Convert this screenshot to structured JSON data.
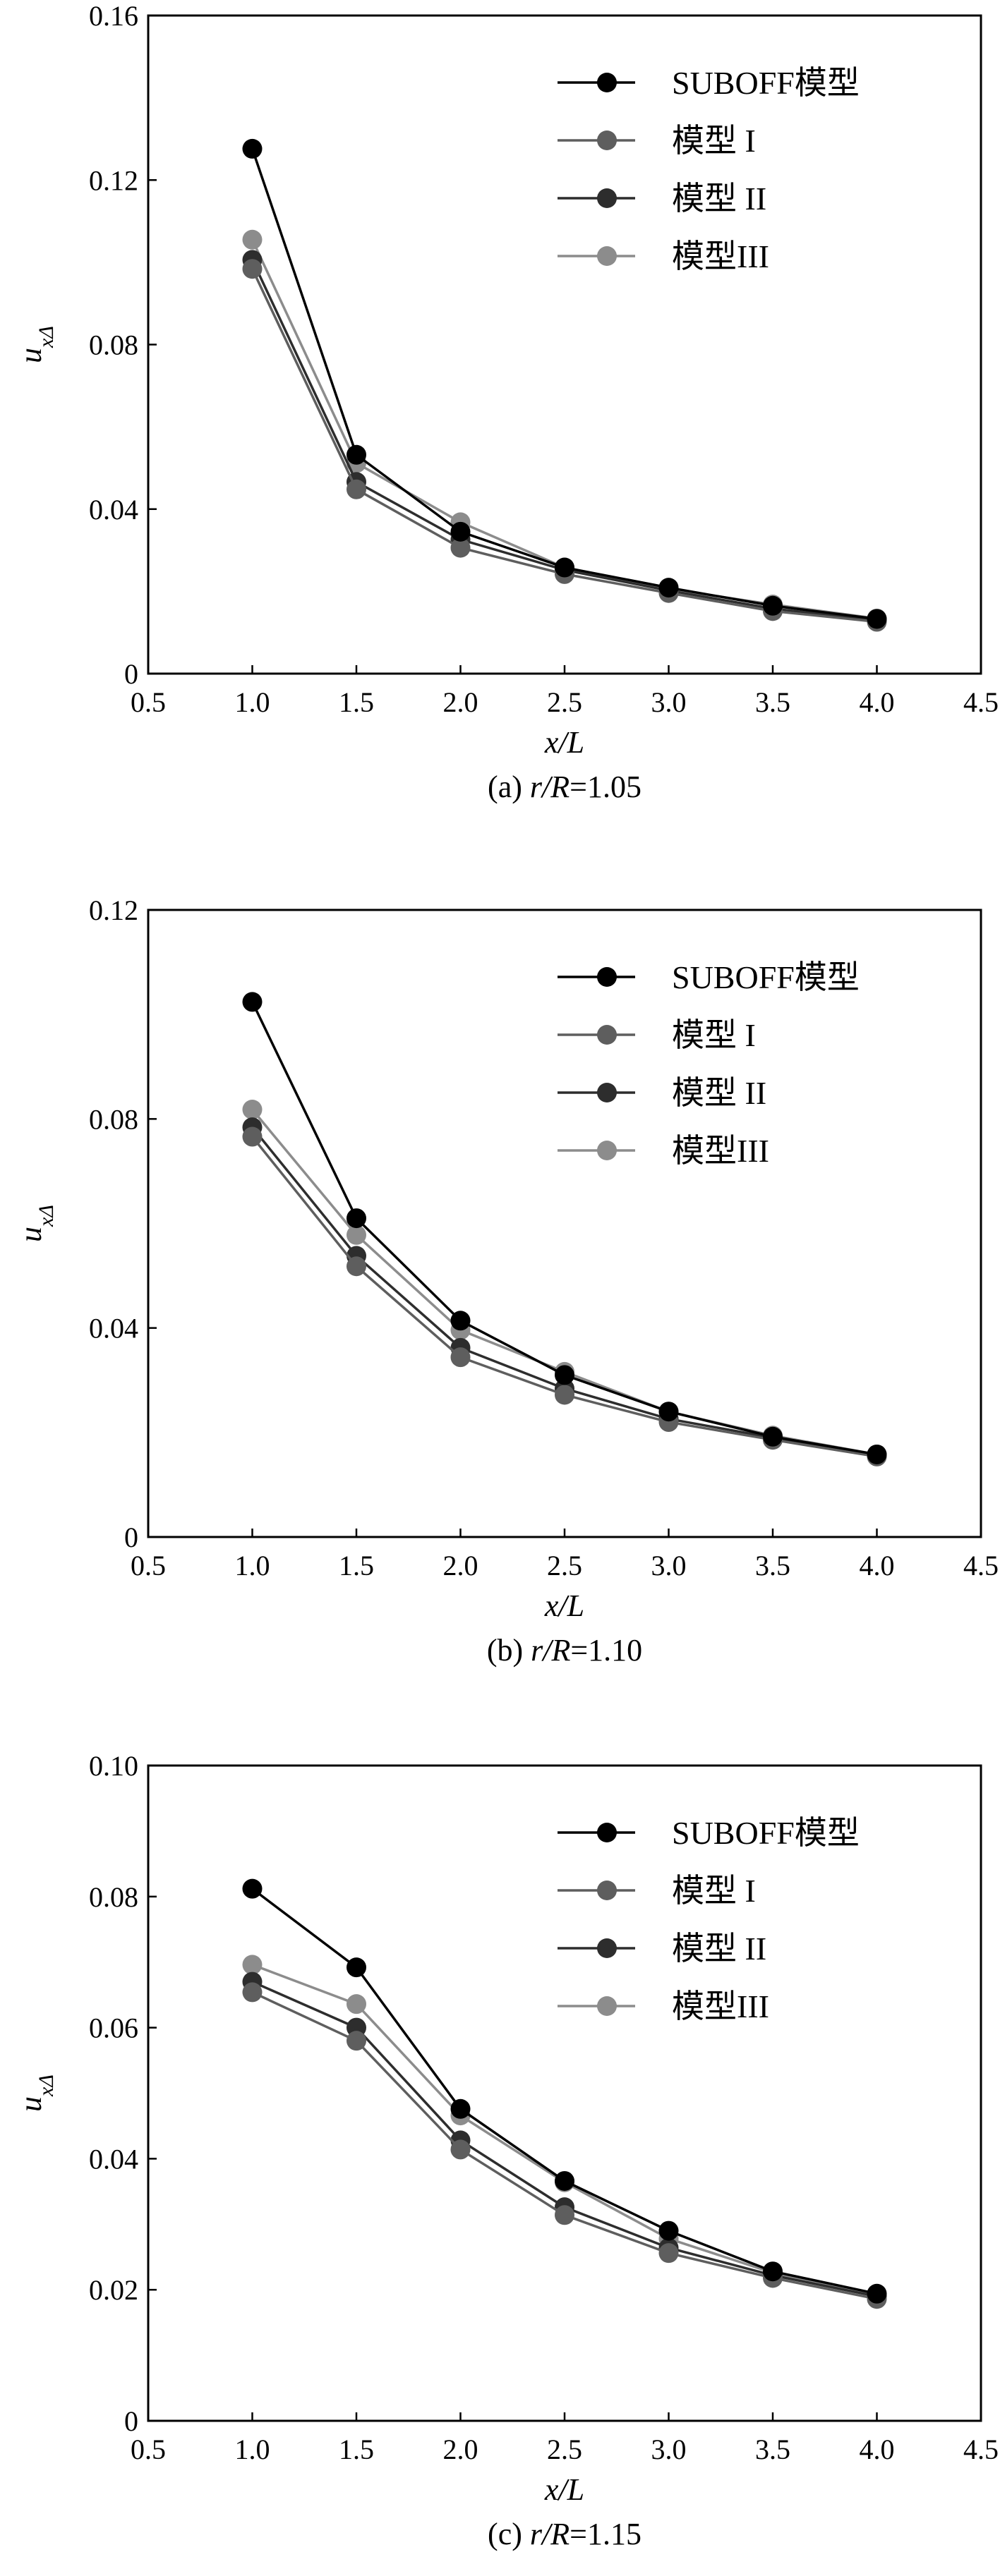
{
  "chart_data": [
    {
      "type": "line",
      "caption_prefix": "(a) ",
      "caption_var": "r/R",
      "caption_value": "=1.05",
      "xlabel": "x/L",
      "ylabel": "u",
      "ylabel_sub": "xΔ",
      "xlim": [
        0.5,
        4.5
      ],
      "ylim": [
        0,
        0.16
      ],
      "xticks": [
        "0.5",
        "1.0",
        "1.5",
        "2.0",
        "2.5",
        "3.0",
        "3.5",
        "4.0",
        "4.5"
      ],
      "yticks": [
        "0",
        "0.04",
        "0.08",
        "0.12",
        "0.16"
      ],
      "x": [
        1.0,
        1.5,
        2.0,
        2.5,
        3.0,
        3.5,
        4.0
      ],
      "legend_position": "top-right",
      "grid": false,
      "series": [
        {
          "name": "SUBOFF模型",
          "color": "#000000",
          "values": [
            0.1276,
            0.0532,
            0.0345,
            0.0258,
            0.0209,
            0.0165,
            0.0133
          ]
        },
        {
          "name": "模型 I",
          "color": "#5e5e5e",
          "values": [
            0.0984,
            0.0448,
            0.0306,
            0.0242,
            0.0196,
            0.0152,
            0.0126
          ]
        },
        {
          "name": "模型 II",
          "color": "#2d2d2d",
          "values": [
            0.1006,
            0.0466,
            0.0326,
            0.0252,
            0.0202,
            0.0158,
            0.013
          ]
        },
        {
          "name": "模型III",
          "color": "#8c8c8c",
          "values": [
            0.1055,
            0.0512,
            0.0368,
            0.0258,
            0.0206,
            0.0168,
            0.0134
          ]
        }
      ]
    },
    {
      "type": "line",
      "caption_prefix": "(b) ",
      "caption_var": "r/R",
      "caption_value": "=1.10",
      "xlabel": "x/L",
      "ylabel": "u",
      "ylabel_sub": "xΔ",
      "xlim": [
        0.5,
        4.5
      ],
      "ylim": [
        0,
        0.12
      ],
      "xticks": [
        "0.5",
        "1.0",
        "1.5",
        "2.0",
        "2.5",
        "3.0",
        "3.5",
        "4.0",
        "4.5"
      ],
      "yticks": [
        "0",
        "0.04",
        "0.08",
        "0.12"
      ],
      "x": [
        1.0,
        1.5,
        2.0,
        2.5,
        3.0,
        3.5,
        4.0
      ],
      "legend_position": "top-right",
      "grid": false,
      "series": [
        {
          "name": "SUBOFF模型",
          "color": "#000000",
          "values": [
            0.1024,
            0.061,
            0.0414,
            0.031,
            0.024,
            0.0192,
            0.0158
          ]
        },
        {
          "name": "模型 I",
          "color": "#5e5e5e",
          "values": [
            0.0766,
            0.0518,
            0.0344,
            0.0272,
            0.022,
            0.0186,
            0.0154
          ]
        },
        {
          "name": "模型 II",
          "color": "#2d2d2d",
          "values": [
            0.0784,
            0.0538,
            0.0362,
            0.0284,
            0.0226,
            0.019,
            0.0156
          ]
        },
        {
          "name": "模型III",
          "color": "#8c8c8c",
          "values": [
            0.0818,
            0.0578,
            0.0396,
            0.0316,
            0.024,
            0.0194,
            0.0158
          ]
        }
      ]
    },
    {
      "type": "line",
      "caption_prefix": "(c) ",
      "caption_var": "r/R",
      "caption_value": "=1.15",
      "xlabel": "x/L",
      "ylabel": "u",
      "ylabel_sub": "xΔ",
      "xlim": [
        0.5,
        4.5
      ],
      "ylim": [
        0,
        0.1
      ],
      "xticks": [
        "0.5",
        "1.0",
        "1.5",
        "2.0",
        "2.5",
        "3.0",
        "3.5",
        "4.0",
        "4.5"
      ],
      "yticks": [
        "0",
        "0.02",
        "0.04",
        "0.06",
        "0.08",
        "0.10"
      ],
      "x": [
        1.0,
        1.5,
        2.0,
        2.5,
        3.0,
        3.5,
        4.0
      ],
      "legend_position": "top-right",
      "grid": false,
      "series": [
        {
          "name": "SUBOFF模型",
          "color": "#000000",
          "values": [
            0.0812,
            0.0692,
            0.0476,
            0.0366,
            0.029,
            0.0228,
            0.0194
          ]
        },
        {
          "name": "模型 I",
          "color": "#5e5e5e",
          "values": [
            0.0654,
            0.058,
            0.0414,
            0.0314,
            0.0256,
            0.0218,
            0.0186
          ]
        },
        {
          "name": "模型 II",
          "color": "#2d2d2d",
          "values": [
            0.067,
            0.06,
            0.0428,
            0.0326,
            0.0264,
            0.0222,
            0.019
          ]
        },
        {
          "name": "模型III",
          "color": "#8c8c8c",
          "values": [
            0.0696,
            0.0636,
            0.0466,
            0.0364,
            0.0278,
            0.0226,
            0.0192
          ]
        }
      ]
    }
  ]
}
